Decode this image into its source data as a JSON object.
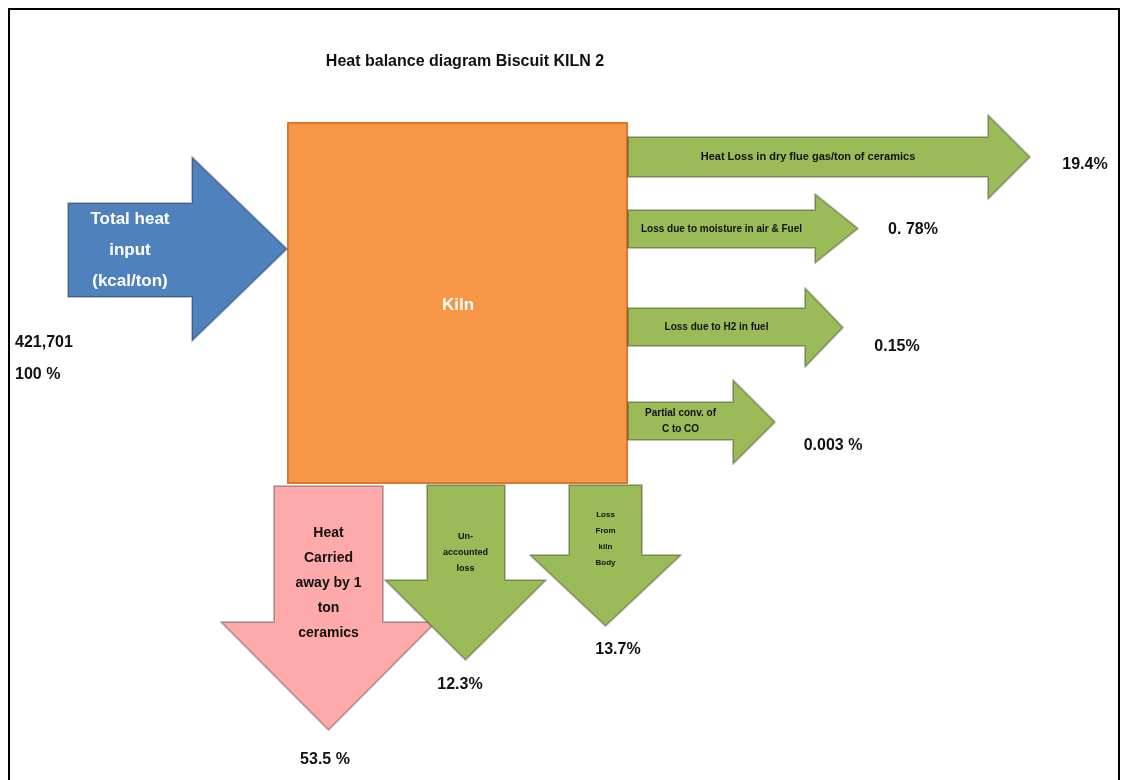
{
  "chart_data": {
    "type": "other",
    "title": "Heat balance diagram Biscuit KILN 2",
    "categories": [
      "Total heat input (kcal/ton)",
      "Heat Loss in dry flue gas/ton of ceramics",
      "Loss due to moisture in air & Fuel",
      "Loss due to H2 in fuel",
      "Partial conv. of C to CO",
      "Heat Carried away by 1 ton ceramics",
      "Un-accounted loss",
      "Loss From kiln Body"
    ],
    "values": [
      100,
      19.4,
      0.78,
      0.15,
      0.003,
      53.5,
      12.3,
      13.7
    ],
    "value_labels": [
      "100 %",
      "19.4%",
      "0. 78%",
      "0.15%",
      "0.003 %",
      "53.5 %",
      "12.3%",
      "13.7%"
    ],
    "colors": [
      "#4f81bd",
      "#9bbb59",
      "#9bbb59",
      "#9bbb59",
      "#9bbb59",
      "#ffaaaa",
      "#9bbb59",
      "#9bbb59"
    ],
    "annotations": [
      "Kiln",
      "421,701"
    ]
  }
}
